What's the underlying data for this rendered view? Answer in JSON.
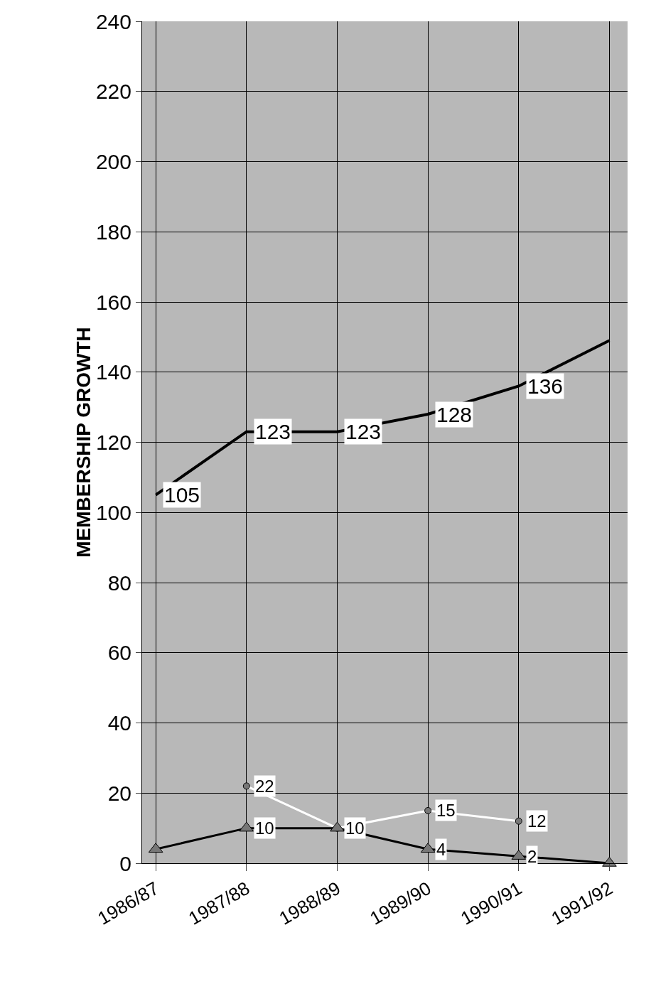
{
  "chart_data": {
    "type": "line",
    "ylabel": "MEMBERSHIP GROWTH",
    "categories": [
      "1986/87",
      "1987/88",
      "1988/89",
      "1989/90",
      "1990/91",
      "1991/92"
    ],
    "series": [
      {
        "color": "#000000",
        "marker": "none",
        "values": [
          105,
          123,
          123,
          128,
          136,
          149
        ],
        "value_labels": [
          "105",
          "123",
          "123",
          "128",
          "136",
          null
        ]
      },
      {
        "color": "#ffffff",
        "marker": "circle",
        "values": [
          null,
          22,
          10,
          15,
          12,
          null
        ],
        "value_labels": [
          null,
          "22",
          "10",
          "15",
          "12",
          null
        ]
      },
      {
        "color": "#000000",
        "marker": "triangle",
        "values": [
          4,
          10,
          10,
          4,
          2,
          0
        ],
        "value_labels": [
          null,
          "10",
          null,
          "4",
          "2",
          null
        ]
      }
    ],
    "ylim": [
      0,
      240
    ],
    "yticks": [
      0,
      20,
      40,
      60,
      80,
      100,
      120,
      140,
      160,
      180,
      200,
      220,
      240
    ],
    "grid": true
  }
}
